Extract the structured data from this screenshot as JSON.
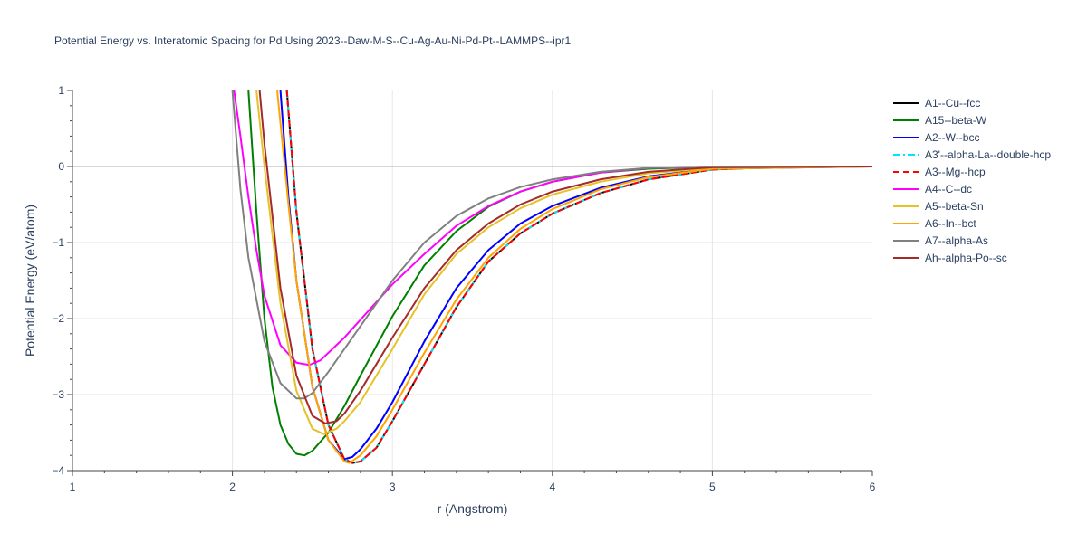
{
  "chart_data": {
    "type": "line",
    "title": "Potential Energy vs. Interatomic Spacing for Pd Using 2023--Daw-M-S--Cu-Ag-Au-Ni-Pd-Pt--LAMMPS--ipr1",
    "xlabel": "r (Angstrom)",
    "ylabel": "Potential Energy (eV/atom)",
    "xlim": [
      1,
      6
    ],
    "ylim": [
      -4,
      1
    ],
    "xticks": [
      "1",
      "2",
      "3",
      "4",
      "5",
      "6"
    ],
    "yticks": [
      "1",
      "0",
      "−1",
      "−2",
      "−3",
      "−4"
    ],
    "grid": true,
    "legend_position": "right",
    "series": [
      {
        "name": "A1--Cu--fcc",
        "color": "#000000",
        "dash": "solid",
        "x": [
          2.34,
          2.4,
          2.5,
          2.6,
          2.7,
          2.75,
          2.8,
          2.9,
          3.0,
          3.2,
          3.4,
          3.6,
          3.8,
          4.0,
          4.3,
          4.6,
          5.0,
          5.5,
          6.0
        ],
        "y": [
          1.0,
          -0.6,
          -2.4,
          -3.4,
          -3.85,
          -3.9,
          -3.88,
          -3.7,
          -3.35,
          -2.6,
          -1.85,
          -1.25,
          -0.88,
          -0.62,
          -0.35,
          -0.17,
          -0.04,
          0.0,
          0.0
        ]
      },
      {
        "name": "A15--beta-W",
        "color": "#008000",
        "dash": "solid",
        "x": [
          2.1,
          2.15,
          2.2,
          2.25,
          2.3,
          2.35,
          2.4,
          2.45,
          2.5,
          2.6,
          2.7,
          2.8,
          3.0,
          3.2,
          3.4,
          3.6,
          3.8,
          4.0,
          4.3,
          4.6,
          5.0,
          6.0
        ],
        "y": [
          1.0,
          -0.6,
          -2.0,
          -2.9,
          -3.4,
          -3.65,
          -3.78,
          -3.8,
          -3.74,
          -3.5,
          -3.15,
          -2.75,
          -1.97,
          -1.3,
          -0.85,
          -0.53,
          -0.33,
          -0.2,
          -0.08,
          -0.03,
          0.0,
          0.0
        ]
      },
      {
        "name": "A2--W--bcc",
        "color": "#0000ff",
        "dash": "solid",
        "x": [
          2.3,
          2.35,
          2.4,
          2.5,
          2.6,
          2.7,
          2.75,
          2.8,
          2.9,
          3.0,
          3.2,
          3.4,
          3.6,
          3.8,
          4.0,
          4.3,
          4.6,
          5.0,
          6.0
        ],
        "y": [
          1.0,
          -0.4,
          -1.5,
          -2.9,
          -3.6,
          -3.85,
          -3.82,
          -3.72,
          -3.45,
          -3.1,
          -2.3,
          -1.6,
          -1.1,
          -0.75,
          -0.52,
          -0.28,
          -0.13,
          -0.03,
          0.0
        ]
      },
      {
        "name": "A3'--alpha-La--double-hcp",
        "color": "#00e5ff",
        "dash": "dashdot",
        "x": [
          2.34,
          2.4,
          2.5,
          2.6,
          2.7,
          2.75,
          2.8,
          2.9,
          3.0,
          3.2,
          3.4,
          3.6,
          3.8,
          4.0,
          4.3,
          4.6,
          5.0,
          5.5,
          6.0
        ],
        "y": [
          1.0,
          -0.6,
          -2.4,
          -3.4,
          -3.85,
          -3.9,
          -3.88,
          -3.7,
          -3.35,
          -2.6,
          -1.85,
          -1.25,
          -0.88,
          -0.62,
          -0.35,
          -0.17,
          -0.04,
          0.0,
          0.0
        ]
      },
      {
        "name": "A3--Mg--hcp",
        "color": "#ff0000",
        "dash": "dash",
        "x": [
          2.34,
          2.4,
          2.5,
          2.6,
          2.7,
          2.75,
          2.8,
          2.9,
          3.0,
          3.2,
          3.4,
          3.6,
          3.8,
          4.0,
          4.3,
          4.6,
          5.0,
          5.5,
          6.0
        ],
        "y": [
          1.0,
          -0.6,
          -2.4,
          -3.4,
          -3.85,
          -3.9,
          -3.88,
          -3.7,
          -3.35,
          -2.6,
          -1.85,
          -1.25,
          -0.88,
          -0.62,
          -0.35,
          -0.17,
          -0.04,
          0.0,
          0.0
        ]
      },
      {
        "name": "A4--C--dc",
        "color": "#ff00ff",
        "dash": "solid",
        "x": [
          2.01,
          2.05,
          2.1,
          2.15,
          2.2,
          2.3,
          2.4,
          2.48,
          2.55,
          2.7,
          2.85,
          3.0,
          3.2,
          3.4,
          3.6,
          3.8,
          4.0,
          4.3,
          4.6,
          5.0,
          6.0
        ],
        "y": [
          1.0,
          0.4,
          -0.4,
          -1.1,
          -1.7,
          -2.35,
          -2.58,
          -2.61,
          -2.55,
          -2.25,
          -1.9,
          -1.55,
          -1.15,
          -0.78,
          -0.52,
          -0.33,
          -0.2,
          -0.08,
          -0.02,
          0.0,
          0.0
        ]
      },
      {
        "name": "A5--beta-Sn",
        "color": "#e6c229",
        "dash": "solid",
        "x": [
          2.15,
          2.2,
          2.3,
          2.4,
          2.5,
          2.57,
          2.65,
          2.7,
          2.8,
          2.9,
          3.0,
          3.2,
          3.4,
          3.6,
          3.8,
          4.0,
          4.3,
          4.6,
          5.0,
          6.0
        ],
        "y": [
          1.0,
          0.0,
          -1.8,
          -2.95,
          -3.45,
          -3.52,
          -3.45,
          -3.35,
          -3.1,
          -2.75,
          -2.4,
          -1.68,
          -1.15,
          -0.8,
          -0.55,
          -0.37,
          -0.2,
          -0.09,
          -0.02,
          0.0
        ]
      },
      {
        "name": "A6--In--bct",
        "color": "#ffa500",
        "dash": "solid",
        "x": [
          2.28,
          2.35,
          2.4,
          2.5,
          2.6,
          2.7,
          2.73,
          2.8,
          2.9,
          3.0,
          3.2,
          3.4,
          3.6,
          3.8,
          4.0,
          4.3,
          4.6,
          5.0,
          6.0
        ],
        "y": [
          1.0,
          -0.5,
          -1.5,
          -2.9,
          -3.6,
          -3.88,
          -3.9,
          -3.8,
          -3.55,
          -3.2,
          -2.45,
          -1.75,
          -1.2,
          -0.82,
          -0.56,
          -0.3,
          -0.14,
          -0.03,
          0.0
        ]
      },
      {
        "name": "A7--alpha-As",
        "color": "#808080",
        "dash": "solid",
        "x": [
          2.0,
          2.05,
          2.1,
          2.2,
          2.3,
          2.4,
          2.45,
          2.5,
          2.6,
          2.8,
          3.0,
          3.2,
          3.4,
          3.6,
          3.8,
          4.0,
          4.3,
          4.6,
          5.0,
          6.0
        ],
        "y": [
          1.0,
          -0.3,
          -1.2,
          -2.3,
          -2.85,
          -3.05,
          -3.05,
          -2.98,
          -2.7,
          -2.1,
          -1.5,
          -1.0,
          -0.65,
          -0.42,
          -0.27,
          -0.17,
          -0.07,
          -0.02,
          0.0,
          0.0
        ]
      },
      {
        "name": "Ah--alpha-Po--sc",
        "color": "#a52a2a",
        "dash": "solid",
        "x": [
          2.17,
          2.2,
          2.3,
          2.4,
          2.5,
          2.58,
          2.65,
          2.7,
          2.8,
          3.0,
          3.2,
          3.4,
          3.6,
          3.8,
          4.0,
          4.3,
          4.6,
          5.0,
          6.0
        ],
        "y": [
          1.0,
          0.3,
          -1.6,
          -2.75,
          -3.28,
          -3.38,
          -3.35,
          -3.25,
          -2.95,
          -2.25,
          -1.6,
          -1.1,
          -0.75,
          -0.5,
          -0.33,
          -0.17,
          -0.07,
          -0.01,
          0.0
        ]
      }
    ]
  }
}
